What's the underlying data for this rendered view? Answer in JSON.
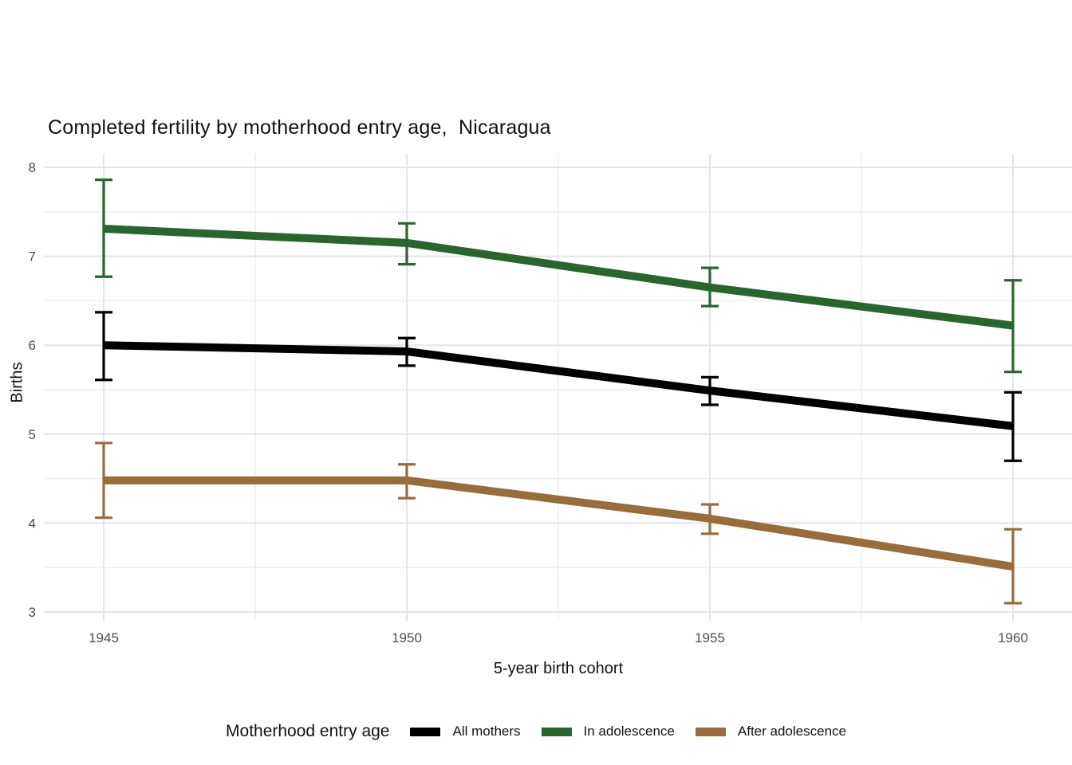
{
  "figure": {
    "title": "Completed fertility by motherhood entry age,  Nicaragua",
    "background_color": "#ffffff"
  },
  "chart_data": {
    "type": "line",
    "title": "Completed fertility by motherhood entry age,  Nicaragua",
    "xlabel": "5-year birth cohort",
    "ylabel": "Births",
    "x": [
      1945,
      1950,
      1955,
      1960
    ],
    "x_tick_labels": [
      "1945",
      "1950",
      "1955",
      "1960"
    ],
    "y_ticks": [
      3,
      4,
      5,
      6,
      7,
      8
    ],
    "y_tick_labels": [
      "3",
      "4",
      "5",
      "6",
      "7",
      "8"
    ],
    "ylim": [
      2.9,
      8.15
    ],
    "xlim": [
      1944,
      1961
    ],
    "grid": {
      "major": true,
      "minor": true,
      "major_color": "#e4e4e4",
      "minor_color": "#efefef",
      "panel_background": "#ffffff"
    },
    "legend_position": "bottom",
    "legend_title": "Motherhood entry age",
    "error_bars": true,
    "series": [
      {
        "name": "All mothers",
        "color": "#000000",
        "values": [
          6.0,
          5.93,
          5.49,
          5.09
        ],
        "ci_lower": [
          5.61,
          5.77,
          5.33,
          4.7
        ],
        "ci_upper": [
          6.37,
          6.08,
          5.64,
          5.47
        ]
      },
      {
        "name": "In adolescence",
        "color": "#2a652d",
        "values": [
          7.31,
          7.15,
          6.65,
          6.22
        ],
        "ci_lower": [
          6.77,
          6.91,
          6.44,
          5.7
        ],
        "ci_upper": [
          7.86,
          7.37,
          6.87,
          6.73
        ]
      },
      {
        "name": "After adolescence",
        "color": "#996c3c",
        "values": [
          4.48,
          4.48,
          4.05,
          3.51
        ],
        "ci_lower": [
          4.06,
          4.28,
          3.88,
          3.1
        ],
        "ci_upper": [
          4.9,
          4.66,
          4.21,
          3.93
        ]
      }
    ],
    "axis_text_color": "#4d4d4d"
  }
}
